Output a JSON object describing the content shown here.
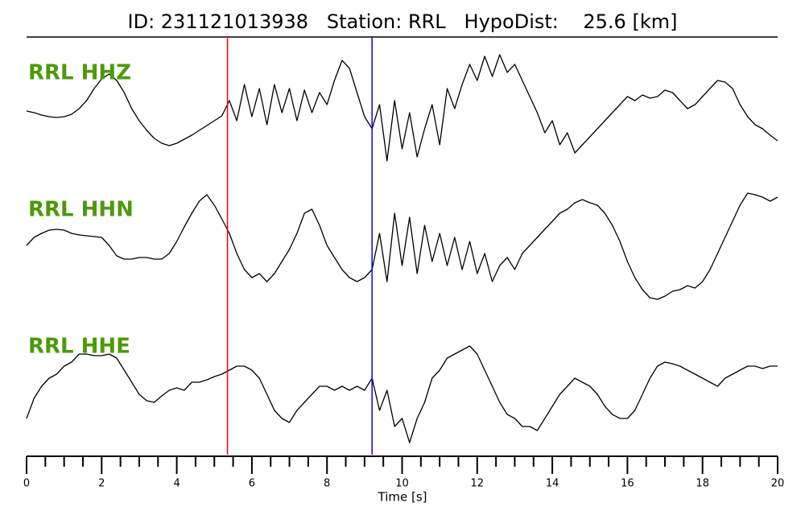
{
  "chart_data": {
    "type": "line",
    "title": "ID: 231121013938   Station: RRL   HypoDist:    25.6 [km]",
    "xlabel": "Time [s]",
    "xlim": [
      0,
      20
    ],
    "xticks": [
      0,
      2,
      4,
      6,
      8,
      10,
      12,
      14,
      16,
      18,
      20
    ],
    "xminorticks": [
      0.5,
      1,
      1.5,
      2.5,
      3,
      3.5,
      4.5,
      5,
      5.5,
      6.5,
      7,
      7.5,
      8.5,
      9,
      9.5,
      10.5,
      11,
      11.5,
      12.5,
      13,
      13.5,
      14.5,
      15,
      15.5,
      16.5,
      17,
      17.5,
      18.5,
      19,
      19.5
    ],
    "ylim": [
      -85,
      85
    ],
    "label_color": "#4c9a0b",
    "x": [
      0,
      0.2,
      0.4,
      0.6,
      0.8,
      1,
      1.2,
      1.4,
      1.6,
      1.8,
      2,
      2.2,
      2.4,
      2.6,
      2.8,
      3,
      3.2,
      3.4,
      3.6,
      3.8,
      4,
      4.2,
      4.4,
      4.6,
      4.8,
      5,
      5.2,
      5.4,
      5.6,
      5.8,
      6,
      6.2,
      6.4,
      6.6,
      6.8,
      7,
      7.2,
      7.4,
      7.6,
      7.8,
      8,
      8.2,
      8.4,
      8.6,
      8.8,
      9,
      9.2,
      9.4,
      9.6,
      9.8,
      10,
      10.2,
      10.4,
      10.6,
      10.8,
      11,
      11.2,
      11.4,
      11.6,
      11.8,
      12,
      12.2,
      12.4,
      12.6,
      12.8,
      13,
      13.2,
      13.4,
      13.6,
      13.8,
      14,
      14.2,
      14.4,
      14.6,
      14.8,
      15,
      15.2,
      15.4,
      15.6,
      15.8,
      16,
      16.2,
      16.4,
      16.6,
      16.8,
      17,
      17.2,
      17.4,
      17.6,
      17.8,
      18,
      18.2,
      18.4,
      18.6,
      18.8,
      19,
      19.2,
      19.4,
      19.6,
      19.8,
      20
    ],
    "series": [
      {
        "name": "RRL HHZ",
        "color": "#000000",
        "values": [
          2,
          0,
          -3,
          -5,
          -6,
          -5,
          -2,
          5,
          15,
          30,
          42,
          48,
          40,
          25,
          5,
          -10,
          -22,
          -32,
          -38,
          -41,
          -38,
          -33,
          -28,
          -22,
          -16,
          -10,
          -4,
          15,
          -10,
          35,
          -5,
          30,
          -15,
          35,
          0,
          30,
          -10,
          28,
          0,
          25,
          10,
          40,
          65,
          55,
          25,
          -5,
          -20,
          10,
          -60,
          15,
          -45,
          0,
          -55,
          -20,
          10,
          -40,
          30,
          5,
          35,
          60,
          40,
          70,
          45,
          72,
          50,
          60,
          40,
          20,
          0,
          -25,
          -10,
          -40,
          -25,
          -50,
          -40,
          -30,
          -20,
          -10,
          0,
          10,
          20,
          15,
          22,
          18,
          20,
          28,
          25,
          15,
          5,
          10,
          20,
          30,
          40,
          38,
          30,
          10,
          -5,
          -15,
          -20,
          -28,
          -35
        ]
      },
      {
        "name": "RRL HHN",
        "color": "#000000",
        "values": [
          5,
          15,
          20,
          24,
          25,
          24,
          20,
          18,
          17,
          16,
          15,
          5,
          -8,
          -12,
          -12,
          -10,
          -10,
          -12,
          -12,
          -5,
          10,
          28,
          45,
          60,
          68,
          55,
          38,
          20,
          -5,
          -25,
          -35,
          -30,
          -40,
          -30,
          -15,
          0,
          20,
          45,
          50,
          30,
          5,
          -10,
          -25,
          -35,
          -40,
          -35,
          -25,
          20,
          -40,
          45,
          -20,
          40,
          -30,
          30,
          -15,
          20,
          -20,
          15,
          -25,
          10,
          -30,
          -5,
          -40,
          -20,
          -10,
          -25,
          -5,
          5,
          15,
          25,
          35,
          45,
          50,
          58,
          62,
          58,
          55,
          45,
          30,
          10,
          -15,
          -35,
          -50,
          -60,
          -62,
          -58,
          -52,
          -50,
          -45,
          -48,
          -40,
          -25,
          -5,
          15,
          35,
          55,
          70,
          68,
          65,
          60,
          65
        ]
      },
      {
        "name": "RRL HHE",
        "color": "#000000",
        "values": [
          -40,
          -15,
          0,
          10,
          15,
          25,
          30,
          40,
          40,
          38,
          38,
          40,
          35,
          20,
          5,
          -10,
          -18,
          -20,
          -12,
          -5,
          -2,
          -5,
          5,
          5,
          8,
          12,
          15,
          20,
          25,
          25,
          20,
          10,
          -10,
          -30,
          -40,
          -45,
          -30,
          -20,
          -10,
          0,
          0,
          -5,
          0,
          -5,
          0,
          -5,
          10,
          -30,
          -5,
          -50,
          -40,
          -70,
          -40,
          -20,
          10,
          20,
          35,
          40,
          45,
          50,
          40,
          20,
          0,
          -20,
          -35,
          -40,
          -50,
          -50,
          -55,
          -40,
          -25,
          -10,
          0,
          10,
          5,
          0,
          -10,
          -25,
          -35,
          -40,
          -40,
          -30,
          -10,
          10,
          25,
          30,
          28,
          25,
          20,
          15,
          10,
          5,
          0,
          10,
          15,
          20,
          25,
          25,
          22,
          25,
          25
        ]
      }
    ],
    "markers": [
      {
        "x": 5.35,
        "color": "#ff0000"
      },
      {
        "x": 9.2,
        "color": "#0000ff"
      }
    ]
  }
}
